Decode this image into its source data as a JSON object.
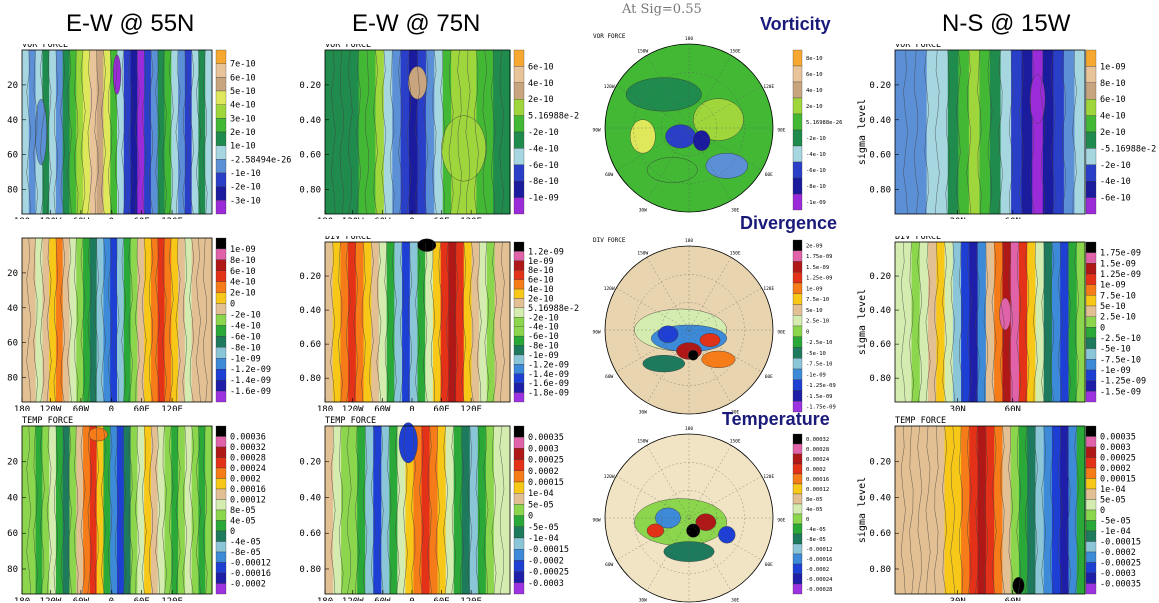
{
  "headers": {
    "col1": "E-W @ 55N",
    "col2": "E-W @ 75N",
    "col3_sig": "At Sig=0.55",
    "col4": "N-S @ 15W"
  },
  "section_titles": {
    "vorticity": "Vorticity",
    "divergence": "Divergence",
    "temperature": "Temperature"
  },
  "force_labels": {
    "vor": "VOR FORCE",
    "div": "DIV FORCE",
    "temp": "TEMP FORCE"
  },
  "axes": {
    "ew_ticks": [
      "180",
      "120W",
      "60W",
      "0",
      "60E",
      "120E"
    ],
    "lat55_ticks": [
      "20",
      "40",
      "60",
      "80"
    ],
    "sigma_ticks": [
      "0.20",
      "0.40",
      "0.60",
      "0.80"
    ],
    "ns_ticks": [
      "30N",
      "60N"
    ],
    "sigma_label": "sigma level"
  },
  "polar_labels": [
    "150W",
    "180",
    "150E",
    "120W",
    "120E",
    "90W",
    "90E",
    "60W",
    "60E",
    "30W",
    "0",
    "30E"
  ],
  "legends": {
    "vor55": [
      "7e-10",
      "6e-10",
      "5e-10",
      "4e-10",
      "3e-10",
      "2e-10",
      "1e-10",
      "-2.58494e-26",
      "-1e-10",
      "-2e-10",
      "-3e-10"
    ],
    "vor75": [
      "6e-10",
      "4e-10",
      "2e-10",
      "5.16988e-2",
      "-2e-10",
      "-4e-10",
      "-6e-10",
      "-8e-10",
      "-1e-09"
    ],
    "vorpolar": [
      "8e-10",
      "6e-10",
      "4e-10",
      "2e-10",
      "5.16988e-26",
      "-2e-10",
      "-4e-10",
      "-6e-10",
      "-8e-10",
      "-1e-09"
    ],
    "vorns": [
      "1e-09",
      "8e-10",
      "6e-10",
      "4e-10",
      "2e-10",
      "-5.16988e-2",
      "-2e-10",
      "-4e-10",
      "-6e-10"
    ],
    "div55": [
      "1e-09",
      "8e-10",
      "6e-10",
      "4e-10",
      "2e-10",
      "0",
      "-2e-10",
      "-4e-10",
      "-6e-10",
      "-8e-10",
      "-1e-09",
      "-1.2e-09",
      "-1.4e-09",
      "-1.6e-09"
    ],
    "div75": [
      "1.2e-09",
      "1e-09",
      "8e-10",
      "6e-10",
      "4e-10",
      "2e-10",
      "5.16988e-2",
      "-2e-10",
      "-4e-10",
      "-6e-10",
      "-8e-10",
      "-1e-09",
      "-1.2e-09",
      "-1.4e-09",
      "-1.6e-09",
      "-1.8e-09"
    ],
    "divpolar": [
      "2e-09",
      "1.75e-09",
      "1.5e-09",
      "1.25e-09",
      "1e-09",
      "7.5e-10",
      "5e-10",
      "2.5e-10",
      "0",
      "-2.5e-10",
      "-5e-10",
      "-7.5e-10",
      "-1e-09",
      "-1.25e-09",
      "-1.5e-09",
      "-1.75e-09"
    ],
    "divns": [
      "1.75e-09",
      "1.5e-09",
      "1.25e-09",
      "1e-09",
      "7.5e-10",
      "5e-10",
      "2.5e-10",
      "0",
      "-2.5e-10",
      "-5e-10",
      "-7.5e-10",
      "-1e-09",
      "-1.25e-09",
      "-1.5e-09"
    ],
    "temp55": [
      "0.00036",
      "0.00032",
      "0.00028",
      "0.00024",
      "0.0002",
      "0.00016",
      "0.00012",
      "8e-05",
      "4e-05",
      "0",
      "-4e-05",
      "-8e-05",
      "-0.00012",
      "-0.00016",
      "-0.0002"
    ],
    "temp75": [
      "0.00035",
      "0.0003",
      "0.00025",
      "0.0002",
      "0.00015",
      "1e-04",
      "5e-05",
      "0",
      "-5e-05",
      "-1e-04",
      "-0.00015",
      "-0.0002",
      "-0.00025",
      "-0.0003"
    ],
    "temppolar": [
      "0.00032",
      "0.00028",
      "0.00024",
      "0.0002",
      "0.00016",
      "0.00012",
      "8e-05",
      "4e-05",
      "0",
      "-4e-05",
      "-8e-05",
      "-0.00012",
      "-0.00016",
      "-0.0002",
      "-0.00024",
      "-0.00028"
    ],
    "tempns": [
      "0.00035",
      "0.0003",
      "0.00025",
      "0.0002",
      "0.00015",
      "1e-04",
      "5e-05",
      "0",
      "-5e-05",
      "-1e-04",
      "-0.00015",
      "-0.0002",
      "-0.00025",
      "-0.0003",
      "-0.00035"
    ]
  },
  "colors": {
    "vor": [
      "#f7a830",
      "#e9c49a",
      "#c8a57e",
      "#dfe85a",
      "#9fd63c",
      "#42b835",
      "#1f8b4c",
      "#a6d6e0",
      "#5b8fd6",
      "#2a3fc7",
      "#1b1b9e",
      "#9b2bd9"
    ],
    "div": [
      "#000000",
      "#e062a8",
      "#b01818",
      "#e43218",
      "#f57c18",
      "#f7c818",
      "#e3c093",
      "#d4ecb0",
      "#8bd64c",
      "#2aa838",
      "#1e7a5c",
      "#8bc6d8",
      "#3c8ad8",
      "#1e3fd4",
      "#1e1ea8",
      "#9c32e0"
    ]
  },
  "chart_data": [
    {
      "type": "heatmap",
      "panel": "E-W @ 55N VOR FORCE",
      "x_ticks": [
        "180",
        "120W",
        "60W",
        "0",
        "60E",
        "120E"
      ],
      "y_ticks": [
        "20",
        "40",
        "60",
        "80"
      ],
      "colorbar": [
        "7e-10",
        "6e-10",
        "5e-10",
        "4e-10",
        "3e-10",
        "2e-10",
        "1e-10",
        "-2.58494e-26",
        "-1e-10",
        "-2e-10",
        "-3e-10"
      ]
    },
    {
      "type": "heatmap",
      "panel": "E-W @ 75N VOR FORCE",
      "x_ticks": [
        "180",
        "120W",
        "60W",
        "0",
        "60E",
        "120E"
      ],
      "y_ticks": [
        "0.20",
        "0.40",
        "0.60",
        "0.80"
      ],
      "colorbar": [
        "6e-10",
        "4e-10",
        "2e-10",
        "5.16988e-2",
        "-2e-10",
        "-4e-10",
        "-6e-10",
        "-8e-10",
        "-1e-09"
      ]
    },
    {
      "type": "heatmap",
      "panel": "Vorticity polar at Sig=0.55",
      "colorbar": [
        "8e-10",
        "6e-10",
        "4e-10",
        "2e-10",
        "5.16988e-26",
        "-2e-10",
        "-4e-10",
        "-6e-10",
        "-8e-10",
        "-1e-09"
      ]
    },
    {
      "type": "heatmap",
      "panel": "N-S @ 15W VOR FORCE",
      "x_ticks": [
        "30N",
        "60N"
      ],
      "y_ticks": [
        "0.20",
        "0.40",
        "0.60",
        "0.80"
      ],
      "colorbar": [
        "1e-09",
        "8e-10",
        "6e-10",
        "4e-10",
        "2e-10",
        "-5.16988e-2",
        "-2e-10",
        "-4e-10",
        "-6e-10"
      ]
    },
    {
      "type": "heatmap",
      "panel": "E-W @ 55N DIV FORCE",
      "colorbar": [
        "1e-09",
        "8e-10",
        "6e-10",
        "4e-10",
        "2e-10",
        "0",
        "-2e-10",
        "-4e-10",
        "-6e-10",
        "-8e-10",
        "-1e-09",
        "-1.2e-09",
        "-1.4e-09",
        "-1.6e-09"
      ]
    },
    {
      "type": "heatmap",
      "panel": "E-W @ 75N DIV FORCE",
      "colorbar": [
        "1.2e-09",
        "1e-09",
        "8e-10",
        "6e-10",
        "4e-10",
        "2e-10",
        "5.16988e-2",
        "-2e-10",
        "-4e-10",
        "-6e-10",
        "-8e-10",
        "-1e-09",
        "-1.2e-09",
        "-1.4e-09",
        "-1.6e-09",
        "-1.8e-09"
      ]
    },
    {
      "type": "heatmap",
      "panel": "Divergence polar",
      "colorbar": [
        "2e-09",
        "1.75e-09",
        "1.5e-09",
        "1.25e-09",
        "1e-09",
        "7.5e-10",
        "5e-10",
        "2.5e-10",
        "0",
        "-2.5e-10",
        "-5e-10",
        "-7.5e-10",
        "-1e-09",
        "-1.25e-09",
        "-1.5e-09",
        "-1.75e-09"
      ]
    },
    {
      "type": "heatmap",
      "panel": "N-S @ 15W DIV FORCE",
      "colorbar": [
        "1.75e-09",
        "1.5e-09",
        "1.25e-09",
        "1e-09",
        "7.5e-10",
        "5e-10",
        "2.5e-10",
        "0",
        "-2.5e-10",
        "-5e-10",
        "-7.5e-10",
        "-1e-09",
        "-1.25e-09",
        "-1.5e-09"
      ]
    },
    {
      "type": "heatmap",
      "panel": "E-W @ 55N TEMP FORCE",
      "colorbar": [
        "0.00036",
        "0.00032",
        "0.00028",
        "0.00024",
        "0.0002",
        "0.00016",
        "0.00012",
        "8e-05",
        "4e-05",
        "0",
        "-4e-05",
        "-8e-05",
        "-0.00012",
        "-0.00016",
        "-0.0002"
      ]
    },
    {
      "type": "heatmap",
      "panel": "E-W @ 75N TEMP FORCE",
      "colorbar": [
        "0.00035",
        "0.0003",
        "0.00025",
        "0.0002",
        "0.00015",
        "1e-04",
        "5e-05",
        "0",
        "-5e-05",
        "-1e-04",
        "-0.00015",
        "-0.0002",
        "-0.00025",
        "-0.0003"
      ]
    },
    {
      "type": "heatmap",
      "panel": "Temperature polar",
      "colorbar": [
        "0.00032",
        "0.00028",
        "0.00024",
        "0.0002",
        "0.00016",
        "0.00012",
        "8e-05",
        "4e-05",
        "0",
        "-4e-05",
        "-8e-05",
        "-0.00012",
        "-0.00016",
        "-0.0002",
        "-0.00024",
        "-0.00028"
      ]
    },
    {
      "type": "heatmap",
      "panel": "N-S @ 15W TEMP FORCE",
      "colorbar": [
        "0.00035",
        "0.0003",
        "0.00025",
        "0.0002",
        "0.00015",
        "1e-04",
        "5e-05",
        "0",
        "-5e-05",
        "-1e-04",
        "-0.00015",
        "-0.0002",
        "-0.00025",
        "-0.0003",
        "-0.00035"
      ]
    }
  ]
}
